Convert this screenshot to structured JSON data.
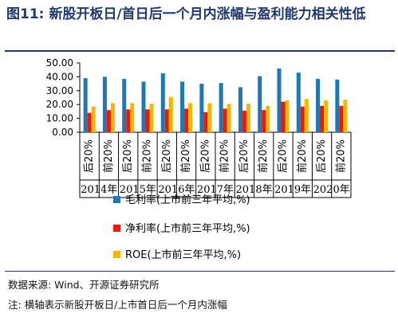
{
  "title": {
    "figure_no": "图11:",
    "text": "新股开板日/首日后一个月内涨幅与盈利能力相关性低"
  },
  "source_note": "数据来源: Wind、开源证券研究所",
  "footnote": "注: 横轴表示新股开板日/上市首日后一个月内涨幅",
  "colors": {
    "gross_margin": "#1F77B4",
    "net_margin": "#E8190E",
    "roe": "#F7B500",
    "title": "#1F3A6B"
  },
  "chart_data": {
    "type": "bar",
    "categories": [
      "后20%",
      "前20%",
      "后20%",
      "前20%",
      "后20%",
      "前20%",
      "后20%",
      "前20%",
      "后20%",
      "前20%",
      "后20%",
      "前20%",
      "后20%",
      "前20%"
    ],
    "groups": [
      "2014年",
      "2015年",
      "2016年",
      "2017年",
      "2018年",
      "2019年",
      "2020年"
    ],
    "series": [
      {
        "name": "毛利率(上市前三年平均,%)",
        "values": [
          39,
          40,
          38.5,
          36.5,
          42.5,
          36.5,
          35,
          35.5,
          32.5,
          40.5,
          46,
          43,
          38.5,
          38
        ]
      },
      {
        "name": "净利率(上市前三年平均,%)",
        "values": [
          14,
          16,
          16.5,
          16.5,
          16.5,
          17,
          14.5,
          17,
          15.5,
          16,
          22,
          18.5,
          19,
          19
        ]
      },
      {
        "name": "ROE(上市前三年平均,%)",
        "values": [
          18.5,
          21,
          21,
          20.5,
          25.5,
          21,
          21,
          20.5,
          20.5,
          19,
          23,
          24,
          23,
          23.5
        ]
      }
    ],
    "yticks": [
      "50.00",
      "40.00",
      "30.00",
      "20.00",
      "10.00",
      "0.00"
    ],
    "ylim": [
      0,
      50
    ],
    "grid": false,
    "legend": "bottom"
  }
}
